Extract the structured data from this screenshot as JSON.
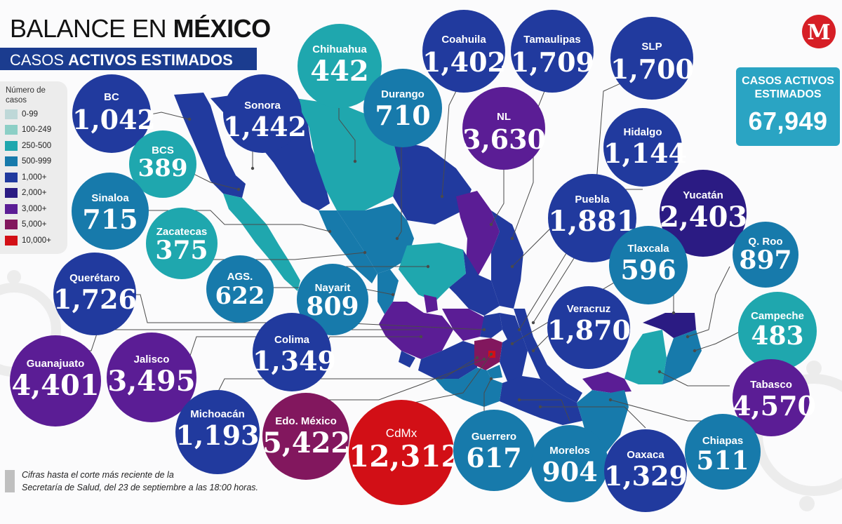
{
  "header": {
    "title_regular": "BALANCE EN ",
    "title_bold": "MÉXICO",
    "subtitle_regular": "CASOS ",
    "subtitle_bold": "ACTIVOS ESTIMADOS"
  },
  "legend": {
    "heading": "Número de casos",
    "items": [
      {
        "label": "0-99",
        "color": "#bed8d8"
      },
      {
        "label": "100-249",
        "color": "#8ccfc6"
      },
      {
        "label": "250-500",
        "color": "#1fa7ae"
      },
      {
        "label": "500-999",
        "color": "#177aab"
      },
      {
        "label": "1,000+",
        "color": "#213a9e"
      },
      {
        "label": "2,000+",
        "color": "#2b1b83"
      },
      {
        "label": "3,000+",
        "color": "#5b1d95"
      },
      {
        "label": "5,000+",
        "color": "#82175e"
      },
      {
        "label": "10,000+",
        "color": "#d20f16"
      }
    ]
  },
  "logo": {
    "letter": "M",
    "color": "#d61f26",
    "icon": "milenio-logo"
  },
  "total": {
    "label_line1": "CASOS ACTIVOS",
    "label_line2": "ESTIMADOS",
    "value": "67,949"
  },
  "states": [
    {
      "id": "bc",
      "name": "BC",
      "value": "1,042",
      "color": "#213a9e"
    },
    {
      "id": "sonora",
      "name": "Sonora",
      "value": "1,442",
      "color": "#213a9e"
    },
    {
      "id": "chihuahua",
      "name": "Chihuahua",
      "value": "442",
      "color": "#1fa7ae"
    },
    {
      "id": "coahuila",
      "name": "Coahuila",
      "value": "1,402",
      "color": "#213a9e"
    },
    {
      "id": "tamaulipas",
      "name": "Tamaulipas",
      "value": "1,709",
      "color": "#213a9e"
    },
    {
      "id": "slp",
      "name": "SLP",
      "value": "1,700",
      "color": "#213a9e"
    },
    {
      "id": "durango",
      "name": "Durango",
      "value": "710",
      "color": "#177aab"
    },
    {
      "id": "nl",
      "name": "NL",
      "value": "3,630",
      "color": "#5b1d95"
    },
    {
      "id": "hidalgo",
      "name": "Hidalgo",
      "value": "1,144",
      "color": "#213a9e"
    },
    {
      "id": "bcs",
      "name": "BCS",
      "value": "389",
      "color": "#1fa7ae"
    },
    {
      "id": "sinaloa",
      "name": "Sinaloa",
      "value": "715",
      "color": "#177aab"
    },
    {
      "id": "zacatecas",
      "name": "Zacatecas",
      "value": "375",
      "color": "#1fa7ae"
    },
    {
      "id": "puebla",
      "name": "Puebla",
      "value": "1,881",
      "color": "#213a9e"
    },
    {
      "id": "yucatan",
      "name": "Yucatán",
      "value": "2,403",
      "color": "#2b1b83"
    },
    {
      "id": "ags",
      "name": "AGS.",
      "value": "622",
      "color": "#177aab"
    },
    {
      "id": "tlaxcala",
      "name": "Tlaxcala",
      "value": "596",
      "color": "#177aab"
    },
    {
      "id": "qroo",
      "name": "Q. Roo",
      "value": "897",
      "color": "#177aab"
    },
    {
      "id": "queretaro",
      "name": "Querétaro",
      "value": "1,726",
      "color": "#213a9e"
    },
    {
      "id": "nayarit",
      "name": "Nayarit",
      "value": "809",
      "color": "#177aab"
    },
    {
      "id": "veracruz",
      "name": "Veracruz",
      "value": "1,870",
      "color": "#213a9e"
    },
    {
      "id": "campeche",
      "name": "Campeche",
      "value": "483",
      "color": "#1fa7ae"
    },
    {
      "id": "colima",
      "name": "Colima",
      "value": "1,349",
      "color": "#213a9e"
    },
    {
      "id": "guanajuato",
      "name": "Guanajuato",
      "value": "4,401",
      "color": "#5b1d95"
    },
    {
      "id": "jalisco",
      "name": "Jalisco",
      "value": "3,495",
      "color": "#5b1d95"
    },
    {
      "id": "tabasco",
      "name": "Tabasco",
      "value": "4,570",
      "color": "#5b1d95"
    },
    {
      "id": "michoacan",
      "name": "Michoacán",
      "value": "1,193",
      "color": "#213a9e"
    },
    {
      "id": "edomex",
      "name": "Edo. México",
      "value": "5,422",
      "color": "#82175e"
    },
    {
      "id": "cdmx",
      "name": "CdMx",
      "value": "12,312",
      "color": "#d20f16"
    },
    {
      "id": "guerrero",
      "name": "Guerrero",
      "value": "617",
      "color": "#177aab"
    },
    {
      "id": "morelos",
      "name": "Morelos",
      "value": "904",
      "color": "#177aab"
    },
    {
      "id": "oaxaca",
      "name": "Oaxaca",
      "value": "1,329",
      "color": "#213a9e"
    },
    {
      "id": "chiapas",
      "name": "Chiapas",
      "value": "511",
      "color": "#177aab"
    }
  ],
  "footnote": {
    "line1": "Cifras hasta el corte más reciente de la",
    "line2": "Secretaría de Salud, del 23 de septiembre a las 18:00 horas."
  }
}
